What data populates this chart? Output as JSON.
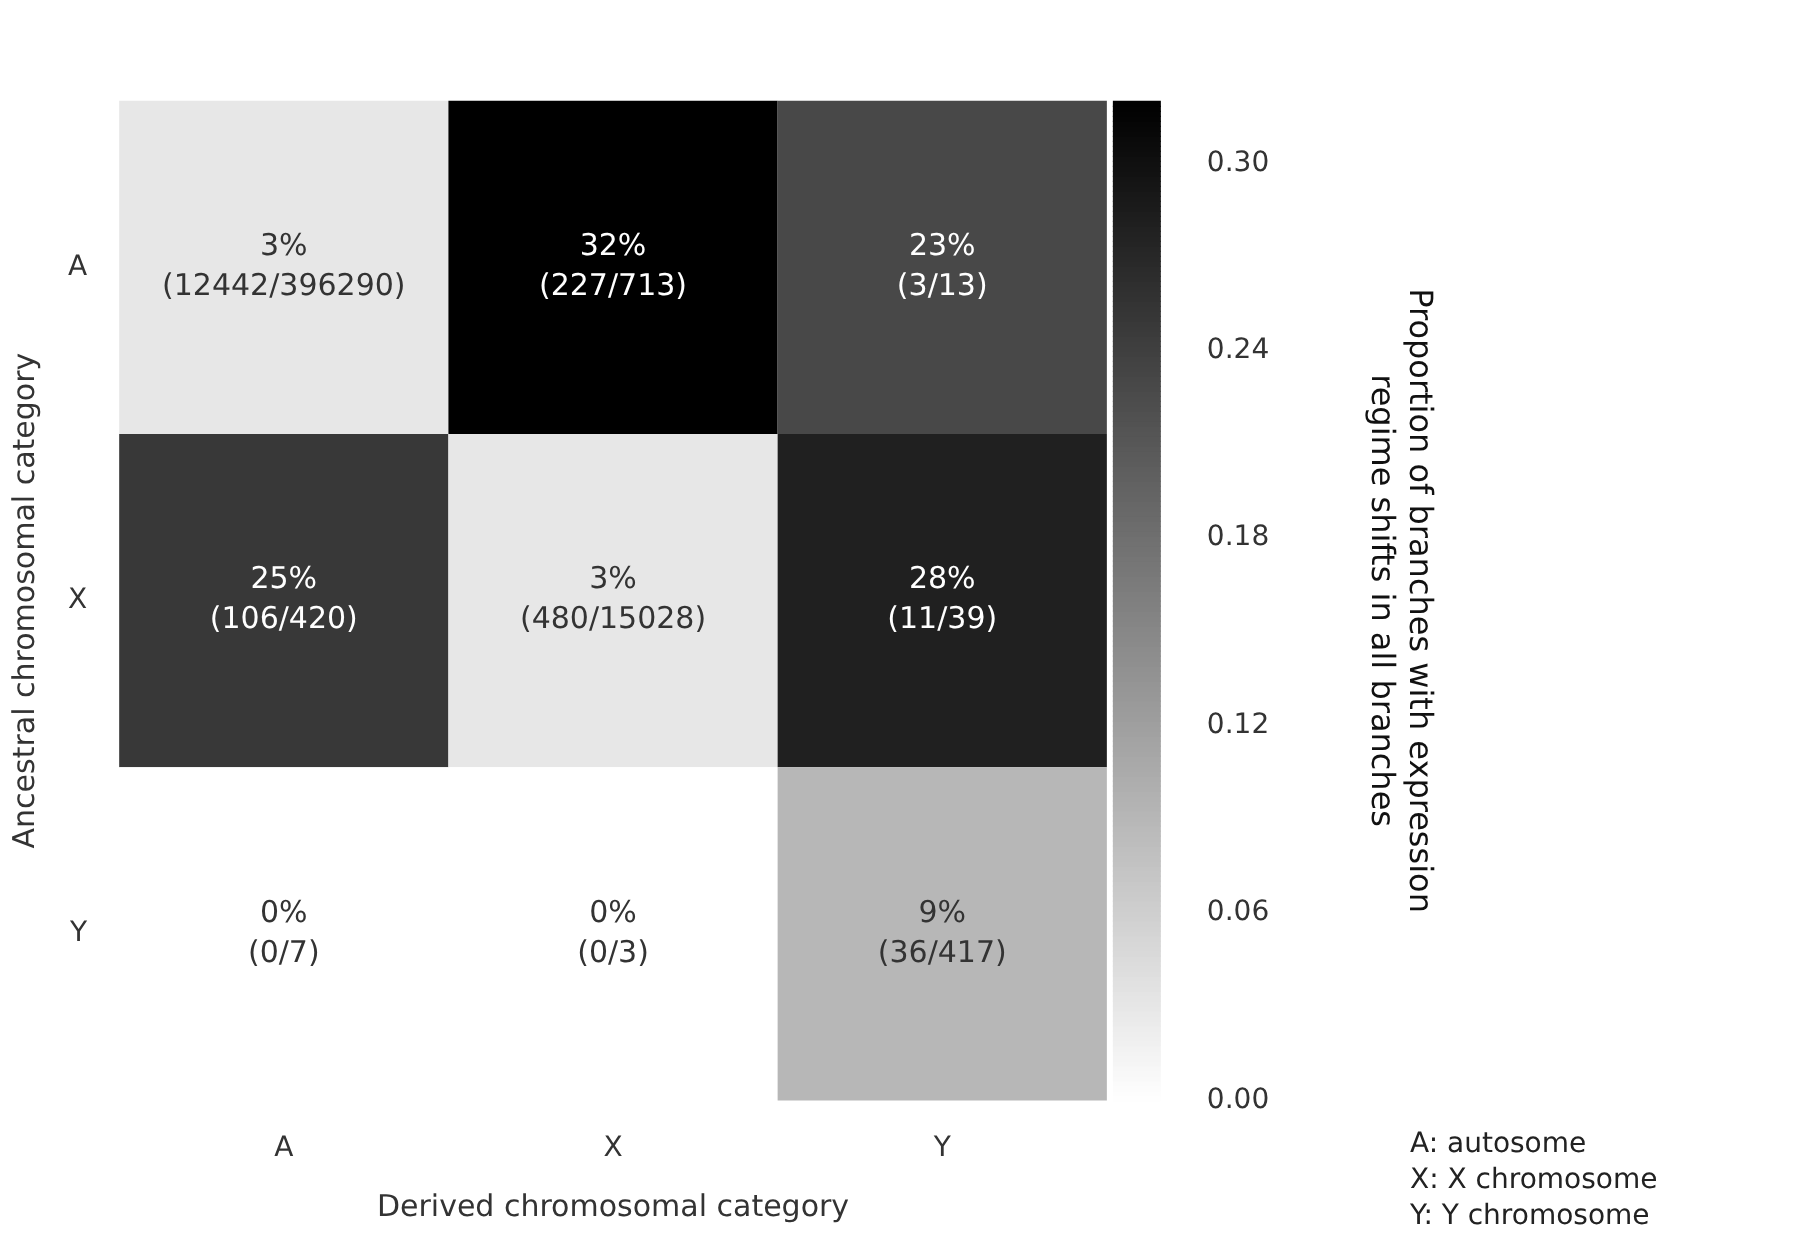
{
  "chart_data": {
    "type": "heatmap",
    "xlabel": "Derived chromosomal category",
    "ylabel": "Ancestral chromosomal category",
    "clabel": "Proportion of branches with expression regime shifts in all branches",
    "categories": [
      "A",
      "X",
      "Y"
    ],
    "y_categories": [
      "A",
      "X",
      "Y"
    ],
    "cells": [
      [
        0.03,
        0.32,
        0.23
      ],
      [
        0.25,
        0.03,
        0.28
      ],
      [
        0,
        0,
        0.09
      ]
    ],
    "cell_labels": [
      [
        "3%\n(12442/396290)",
        "32%\n(227/713)",
        "23%\n(3/13)"
      ],
      [
        "25%\n(106/420)",
        "3%\n(480/15028)",
        "28%\n(11/39)"
      ],
      [
        "0%\n(0/7)",
        "0%\n(0/3)",
        "9%\n(36/417)"
      ]
    ],
    "clim": [
      0,
      0.32
    ],
    "cticks": [
      {
        "value": 0,
        "label": "0.00"
      },
      {
        "value": 0.06,
        "label": "0.06"
      },
      {
        "value": 0.12,
        "label": "0.12"
      },
      {
        "value": 0.18,
        "label": "0.18"
      },
      {
        "value": 0.24,
        "label": "0.24"
      },
      {
        "value": 0.3,
        "label": "0.30"
      }
    ],
    "annotations": [
      "A: autosome",
      "X: X chromosome",
      "Y: Y chromosome"
    ]
  }
}
